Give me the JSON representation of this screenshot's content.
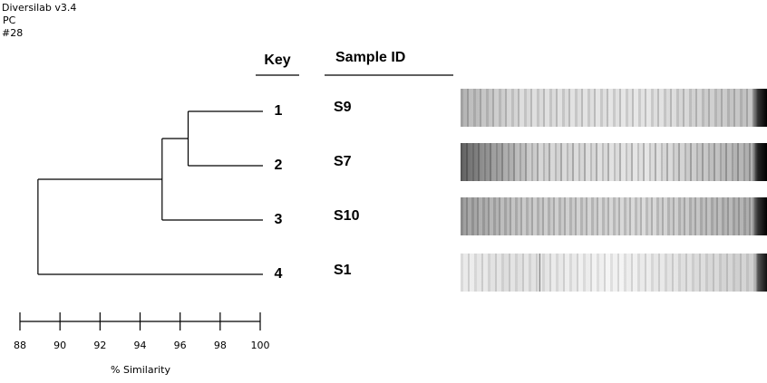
{
  "header": {
    "software": "Diversilab v3.4",
    "lines": [
      "PC",
      "#28"
    ]
  },
  "chart_data": {
    "type": "dendrogram",
    "key_label": "Key",
    "sample_label": "Sample ID",
    "xlabel": "% Similarity",
    "xlim": [
      88,
      100
    ],
    "xticks": [
      88,
      90,
      92,
      94,
      96,
      98,
      100
    ],
    "tree": {
      "similarity": 88.9,
      "children": [
        {
          "similarity": 95.1,
          "children": [
            {
              "similarity": 96.4,
              "children": [
                {
                  "key": "1",
                  "sample": "S9"
                },
                {
                  "key": "2",
                  "sample": "S7"
                }
              ]
            },
            {
              "key": "3",
              "sample": "S10"
            }
          ]
        },
        {
          "key": "4",
          "sample": "S1"
        }
      ]
    }
  }
}
